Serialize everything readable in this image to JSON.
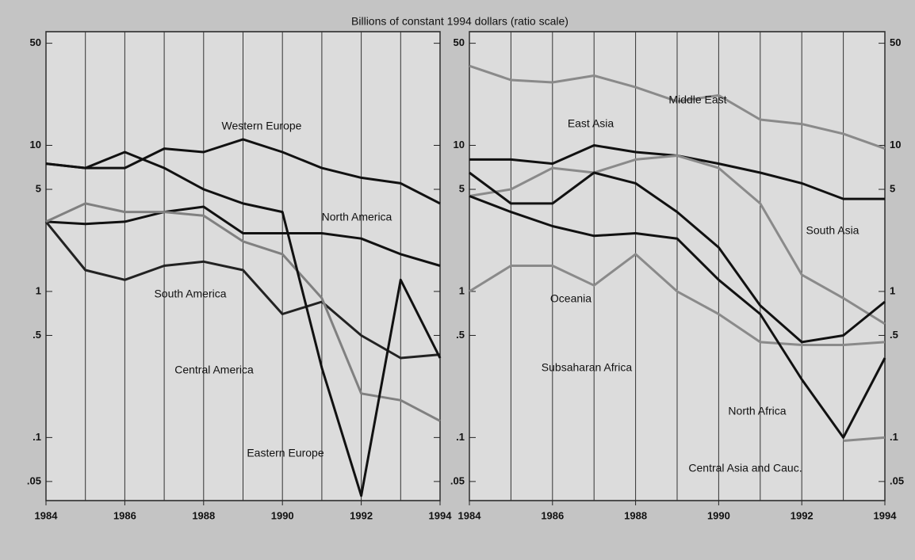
{
  "title": "Billions of constant 1994 dollars (ratio scale)",
  "chart_data": [
    {
      "type": "line",
      "log_y": true,
      "grid": true,
      "x": [
        1984,
        1985,
        1986,
        1987,
        1988,
        1989,
        1990,
        1991,
        1992,
        1993,
        1994
      ],
      "xlim": [
        1984,
        1994
      ],
      "xticks": [
        1984,
        1986,
        1988,
        1990,
        1992,
        1994
      ],
      "ylim": [
        0.037,
        60
      ],
      "yticks": [
        50,
        10,
        5,
        1,
        {
          "value": 0.5,
          "label": ".5"
        },
        {
          "value": 0.1,
          "label": ".1"
        },
        {
          "value": 0.05,
          "label": ".05"
        }
      ],
      "series": [
        {
          "name": "Western Europe",
          "color": "#111111",
          "values": [
            7.5,
            7,
            7,
            9.5,
            9,
            11,
            9,
            7,
            6,
            5.5,
            4
          ]
        },
        {
          "name": "North America",
          "color": "#111111",
          "values": [
            3,
            2.9,
            3,
            3.5,
            3.8,
            2.5,
            2.5,
            2.5,
            2.3,
            1.8,
            1.5
          ]
        },
        {
          "name": "South America",
          "color": "#222222",
          "values": [
            3,
            1.4,
            1.2,
            1.5,
            1.6,
            1.4,
            0.7,
            0.85,
            0.5,
            0.35,
            0.37
          ]
        },
        {
          "name": "Central America",
          "color": "#808080",
          "values": [
            3,
            4,
            3.5,
            3.5,
            3.3,
            2.2,
            1.8,
            0.9,
            0.2,
            0.18,
            0.13
          ]
        },
        {
          "name": "Eastern Europe",
          "color": "#111111",
          "values": [
            7.5,
            7,
            9,
            7,
            5,
            4,
            3.5,
            0.3,
            0.04,
            1.2,
            0.35
          ]
        }
      ]
    },
    {
      "type": "line",
      "log_y": true,
      "grid": true,
      "x": [
        1984,
        1985,
        1986,
        1987,
        1988,
        1989,
        1990,
        1991,
        1992,
        1993,
        1994
      ],
      "xlim": [
        1984,
        1994
      ],
      "xticks": [
        1984,
        1986,
        1988,
        1990,
        1992,
        1994
      ],
      "ylim": [
        0.037,
        60
      ],
      "yticks": [
        50,
        10,
        5,
        1,
        {
          "value": 0.5,
          "label": ".5"
        },
        {
          "value": 0.1,
          "label": ".1"
        },
        {
          "value": 0.05,
          "label": ".05"
        }
      ],
      "series": [
        {
          "name": "Middle East",
          "color": "#8a8a8a",
          "values": [
            35,
            28,
            27,
            30,
            25,
            20,
            22,
            15,
            14,
            12,
            9.5
          ]
        },
        {
          "name": "East Asia",
          "color": "#111111",
          "values": [
            8,
            8,
            7.5,
            10,
            9,
            8.5,
            7.5,
            6.5,
            5.5,
            4.3,
            4.3
          ]
        },
        {
          "name": "South Asia",
          "color": "#8a8a8a",
          "values": [
            4.5,
            5,
            7,
            6.5,
            8,
            8.5,
            7,
            4,
            1.3,
            0.9,
            0.6
          ]
        },
        {
          "name": "Oceania",
          "color": "#8a8a8a",
          "values": [
            1,
            1.5,
            1.5,
            1.1,
            1.8,
            1,
            0.7,
            0.45,
            0.43,
            0.43,
            0.45
          ]
        },
        {
          "name": "Subsaharan Africa",
          "color": "#111111",
          "values": [
            6.5,
            4,
            4,
            6.5,
            5.5,
            3.5,
            2,
            0.8,
            0.45,
            0.5,
            0.85
          ]
        },
        {
          "name": "North Africa",
          "color": "#111111",
          "values": [
            4.5,
            3.5,
            2.8,
            2.4,
            2.5,
            2.3,
            1.2,
            0.7,
            0.25,
            0.1,
            0.35
          ]
        },
        {
          "name": "Central Asia and Cauc.",
          "color": "#8a8a8a",
          "values": [
            null,
            null,
            null,
            null,
            null,
            null,
            null,
            null,
            null,
            0.095,
            0.1
          ]
        }
      ]
    }
  ]
}
